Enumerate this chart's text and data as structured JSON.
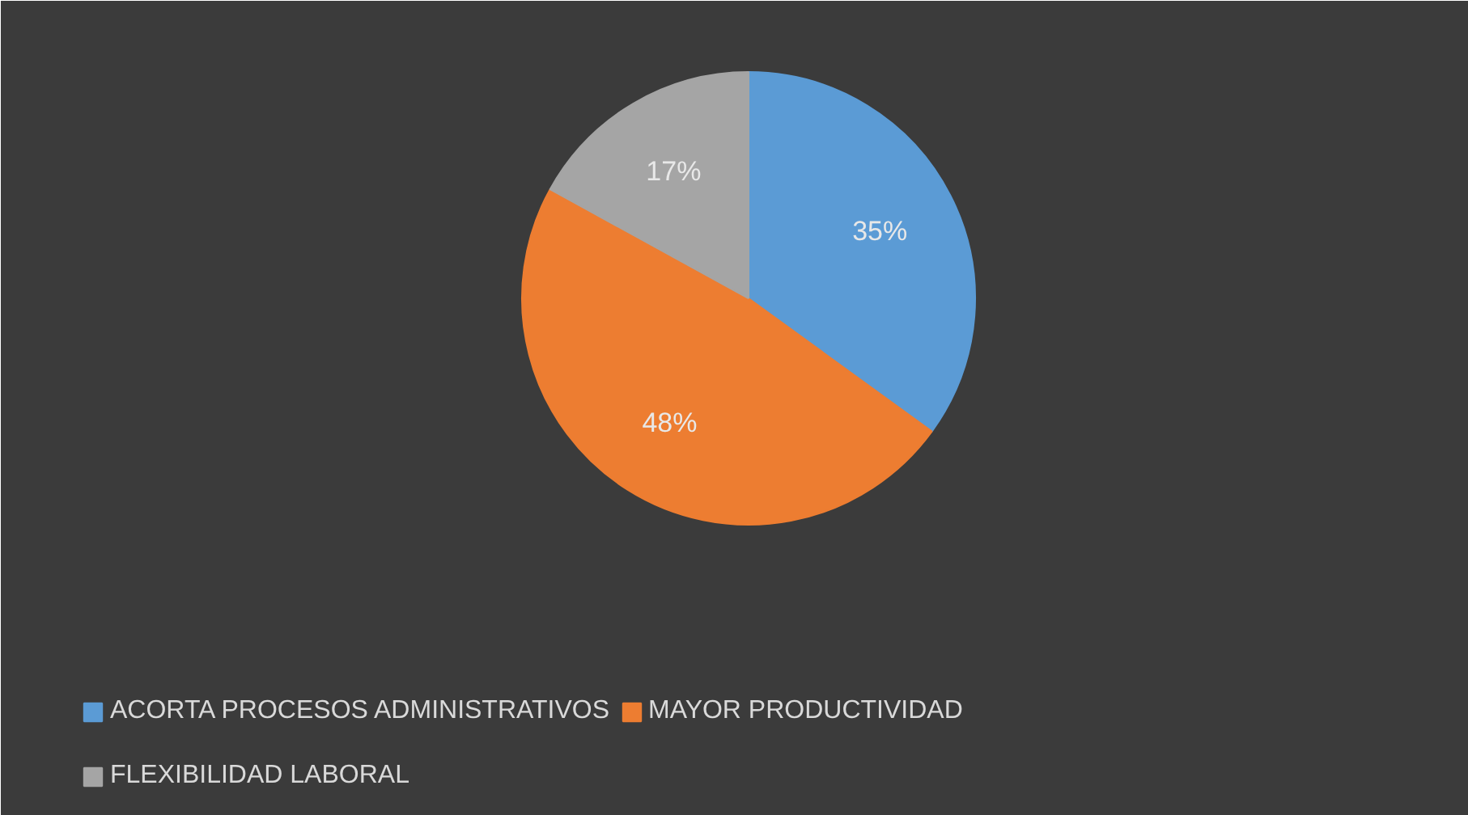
{
  "chart_data": {
    "type": "pie",
    "categories": [
      "ACORTA PROCESOS ADMINISTRATIVOS",
      "MAYOR PRODUCTIVIDAD",
      "FLEXIBILIDAD LABORAL"
    ],
    "values": [
      35,
      48,
      17
    ],
    "colors": [
      "#5b9bd5",
      "#ed7d31",
      "#a5a5a5"
    ],
    "value_labels": [
      "35%",
      "48%",
      "17%"
    ],
    "legend": "bottom"
  }
}
